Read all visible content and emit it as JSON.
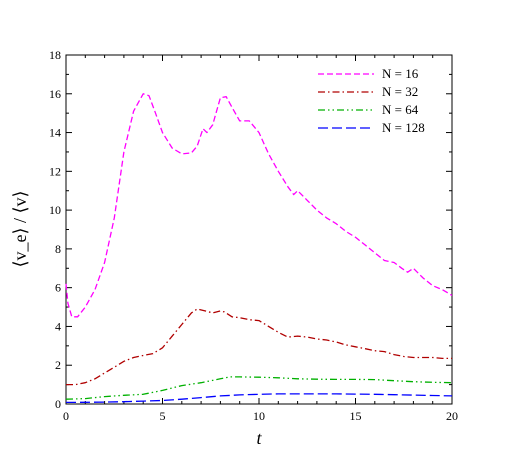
{
  "chart_data": {
    "type": "line",
    "title": "",
    "xlabel": "t",
    "ylabel": "⟨v_e⟩ / ⟨v⟩",
    "xlim": [
      0,
      20
    ],
    "ylim": [
      0,
      18
    ],
    "x_ticks": [
      "0",
      "5",
      "10",
      "15",
      "20"
    ],
    "y_ticks": [
      "0",
      "2",
      "4",
      "6",
      "8",
      "10",
      "12",
      "14",
      "16",
      "18"
    ],
    "grid": false,
    "legend_position": "top-right",
    "series": [
      {
        "name": "N = 16",
        "color": "#ff00ff",
        "dash": "dash",
        "x": [
          0,
          0.1,
          0.3,
          0.6,
          1.0,
          1.5,
          2.0,
          2.5,
          3.0,
          3.5,
          4.0,
          4.3,
          4.6,
          5.0,
          5.5,
          6.0,
          6.5,
          6.8,
          7.1,
          7.3,
          7.6,
          8.0,
          8.3,
          8.6,
          9.0,
          9.5,
          10.0,
          10.5,
          11.0,
          11.5,
          11.8,
          12.0,
          12.5,
          13.0,
          13.5,
          14.0,
          14.5,
          15.0,
          15.5,
          16.0,
          16.5,
          17.0,
          17.4,
          17.7,
          18.0,
          18.5,
          19.0,
          19.5,
          20.0
        ],
        "y": [
          6.2,
          5.2,
          4.5,
          4.5,
          5.0,
          5.9,
          7.3,
          9.6,
          13.0,
          15.1,
          16.0,
          15.9,
          15.1,
          14.0,
          13.2,
          12.9,
          12.95,
          13.3,
          14.2,
          14.0,
          14.4,
          15.8,
          15.85,
          15.3,
          14.6,
          14.6,
          14.0,
          12.9,
          12.0,
          11.2,
          10.8,
          11.0,
          10.5,
          10.0,
          9.6,
          9.3,
          8.9,
          8.6,
          8.2,
          7.8,
          7.4,
          7.3,
          7.0,
          6.8,
          7.0,
          6.5,
          6.1,
          5.9,
          5.6
        ]
      },
      {
        "name": "N = 32",
        "color": "#b00000",
        "dash": "dashdot",
        "x": [
          0,
          0.5,
          1.0,
          1.5,
          2.0,
          2.5,
          3.0,
          3.5,
          4.0,
          4.5,
          5.0,
          5.5,
          6.0,
          6.5,
          6.8,
          7.2,
          7.6,
          8.0,
          8.2,
          8.6,
          9.0,
          9.5,
          10.0,
          10.5,
          11.0,
          11.5,
          12.0,
          12.5,
          13.0,
          13.5,
          14.0,
          14.5,
          15.0,
          15.5,
          16.0,
          16.5,
          17.0,
          17.5,
          18.0,
          18.5,
          19.0,
          19.5,
          20.0
        ],
        "y": [
          1.0,
          1.0,
          1.1,
          1.3,
          1.6,
          1.9,
          2.2,
          2.4,
          2.5,
          2.6,
          2.9,
          3.5,
          4.1,
          4.7,
          4.9,
          4.8,
          4.7,
          4.8,
          4.75,
          4.5,
          4.45,
          4.35,
          4.3,
          4.0,
          3.7,
          3.45,
          3.5,
          3.45,
          3.35,
          3.3,
          3.2,
          3.05,
          2.95,
          2.85,
          2.75,
          2.7,
          2.55,
          2.45,
          2.4,
          2.4,
          2.4,
          2.35,
          2.35
        ]
      },
      {
        "name": "N = 64",
        "color": "#00b000",
        "dash": "dashdotdot",
        "x": [
          0,
          1.0,
          2.0,
          3.0,
          4.0,
          5.0,
          6.0,
          7.0,
          8.0,
          8.5,
          9.0,
          10.0,
          11.0,
          12.0,
          13.0,
          14.0,
          15.0,
          16.0,
          17.0,
          18.0,
          19.0,
          20.0
        ],
        "y": [
          0.25,
          0.28,
          0.38,
          0.45,
          0.5,
          0.7,
          0.95,
          1.1,
          1.3,
          1.4,
          1.4,
          1.38,
          1.35,
          1.3,
          1.28,
          1.27,
          1.27,
          1.26,
          1.2,
          1.15,
          1.12,
          1.1
        ]
      },
      {
        "name": "N = 128",
        "color": "#0000ff",
        "dash": "longdash",
        "x": [
          0,
          1.0,
          2.0,
          3.0,
          4.0,
          5.0,
          6.0,
          7.0,
          8.0,
          9.0,
          10.0,
          11.0,
          12.0,
          13.0,
          14.0,
          15.0,
          16.0,
          17.0,
          18.0,
          19.0,
          20.0
        ],
        "y": [
          0.08,
          0.09,
          0.1,
          0.12,
          0.15,
          0.18,
          0.25,
          0.33,
          0.42,
          0.47,
          0.5,
          0.52,
          0.52,
          0.52,
          0.52,
          0.51,
          0.5,
          0.48,
          0.46,
          0.44,
          0.42
        ]
      }
    ]
  }
}
